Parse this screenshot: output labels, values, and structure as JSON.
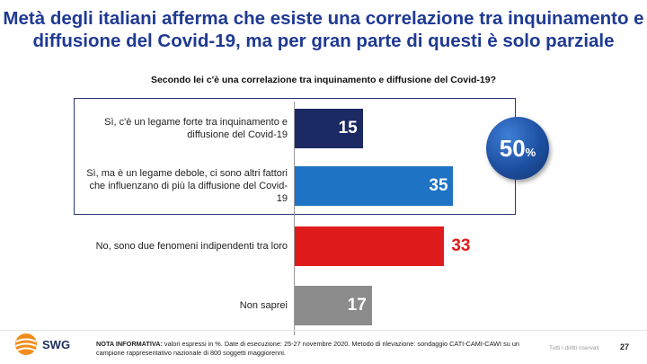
{
  "title": "Metà degli italiani afferma che esiste una correlazione tra inquinamento e diffusione del Covid-19, ma per gran parte di questi è solo parziale",
  "colors": {
    "title": "#1f3a93",
    "bar_strong": "#1b2a63",
    "bar_weak": "#1e73c4",
    "bar_independent": "#e01b1b",
    "bar_dontknow": "#8c8c8c",
    "value_red": "#e01b1b"
  },
  "chart_data": {
    "type": "bar",
    "orientation": "horizontal",
    "title": "Secondo lei c'è una correlazione tra inquinamento e diffusione del Covid-19?",
    "unit": "%",
    "xlim": [
      0,
      100
    ],
    "categories": [
      "Sì, c'è un legame forte tra inquinamento e diffusione del Covid-19",
      "Sì, ma è un legame debole, ci sono altri fattori che influenzano di più la diffusione del Covid-19",
      "No, sono due fenomeni indipendenti tra loro",
      "Non saprei"
    ],
    "values": [
      15,
      35,
      33,
      17
    ],
    "value_labels": [
      "15",
      "35",
      "33",
      "17"
    ],
    "group_total": {
      "label": "50",
      "unit": "%",
      "applies_to": [
        0,
        1
      ]
    }
  },
  "footer": {
    "logo": "SWG",
    "note_label": "NOTA INFORMATIVA:",
    "note_text": " valori espressi in %. Date di esecuzione: 25-27 novembre 2020. Metodo di rilevazione: sondaggio CATI-CAMI-CAWI su un campione rappresentativo nazionale di 800 soggetti maggiorenni.",
    "rights": "Tutti i diritti riservati",
    "page": "27"
  }
}
